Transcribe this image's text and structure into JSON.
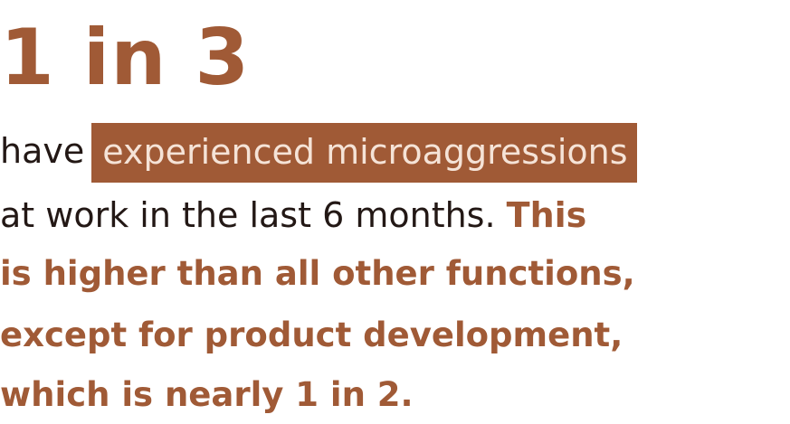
{
  "headline": {
    "stat": "1 in 3"
  },
  "body": {
    "line1_prefix": "have",
    "line1_highlight": "experienced microaggressions",
    "line2_plain": "at work in the last 6 months.",
    "line2_accent": "This",
    "line3": "is higher than all other functions,",
    "line4": "except for product development,",
    "line5": "which is nearly 1 in 2."
  },
  "colors": {
    "accent": "#a05a36",
    "text": "#231815",
    "highlight_text": "#f5e3d7",
    "background": "#ffffff"
  }
}
